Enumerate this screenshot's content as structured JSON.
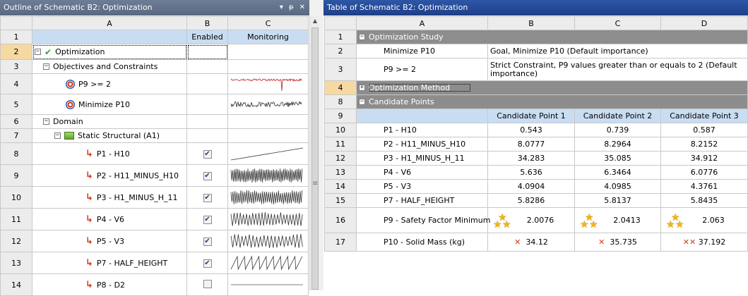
{
  "left_panel": {
    "title": "Outline of Schematic B2: Optimization",
    "title_buttons": [
      "▾",
      "ᵽ",
      "✕"
    ],
    "columns": [
      "A",
      "B",
      "C"
    ],
    "subheaders": [
      "",
      "Enabled",
      "Monitoring"
    ],
    "rows": [
      {
        "num": "1"
      },
      {
        "num": "2",
        "label": "Optimization"
      },
      {
        "num": "3",
        "label": "Objectives and Constraints"
      },
      {
        "num": "4",
        "label": "P9 >= 2"
      },
      {
        "num": "5",
        "label": "Minimize P10"
      },
      {
        "num": "6",
        "label": "Domain"
      },
      {
        "num": "7",
        "label": "Static Structural (A1)"
      },
      {
        "num": "8",
        "label": "P1 - H10",
        "enabled": true
      },
      {
        "num": "9",
        "label": "P2 - H11_MINUS_H10",
        "enabled": true
      },
      {
        "num": "10",
        "label": "P3 - H1_MINUS_H_11",
        "enabled": true
      },
      {
        "num": "11",
        "label": "P4 - V6",
        "enabled": true
      },
      {
        "num": "12",
        "label": "P5 - V3",
        "enabled": true
      },
      {
        "num": "13",
        "label": "P7 - HALF_HEIGHT",
        "enabled": true
      },
      {
        "num": "14",
        "label": "P8 - D2",
        "enabled": false
      }
    ],
    "icons": {
      "expand": "minus-box-icon",
      "optimization": "green-check-icon",
      "objective": "target-icon",
      "system": "static-structural-icon",
      "parameter": "parameter-p-icon"
    }
  },
  "right_panel": {
    "title": "Table of Schematic B2: Optimization",
    "columns": [
      "A",
      "B",
      "C",
      "D"
    ],
    "rows": {
      "r1": {
        "num": "1",
        "label": "Optimization Study"
      },
      "r2": {
        "num": "2",
        "label": "Minimize P10",
        "value": "Goal, Minimize P10 (Default importance)"
      },
      "r3": {
        "num": "3",
        "label": "P9 >= 2",
        "value_line1": "Strict Constraint, P9 values greater than or equals to 2 (Default",
        "value_line2": "importance)"
      },
      "r4": {
        "num": "4",
        "label": "Optimization Method"
      },
      "r8": {
        "num": "8",
        "label": "Candidate Points"
      },
      "r9": {
        "num": "9",
        "headers": [
          "Candidate Point 1",
          "Candidate Point 2",
          "Candidate Point 3"
        ]
      },
      "data": [
        {
          "num": "10",
          "label": "P1 - H10",
          "values": [
            "0.543",
            "0.739",
            "0.587"
          ]
        },
        {
          "num": "11",
          "label": "P2 - H11_MINUS_H10",
          "values": [
            "8.0777",
            "8.2964",
            "8.2152"
          ]
        },
        {
          "num": "12",
          "label": "P3 - H1_MINUS_H_11",
          "values": [
            "34.283",
            "35.085",
            "34.912"
          ]
        },
        {
          "num": "13",
          "label": "P4 - V6",
          "values": [
            "5.636",
            "6.3464",
            "6.0776"
          ]
        },
        {
          "num": "14",
          "label": "P5 - V3",
          "values": [
            "4.0904",
            "4.0985",
            "4.3761"
          ]
        },
        {
          "num": "15",
          "label": "P7 - HALF_HEIGHT",
          "values": [
            "5.8286",
            "5.8137",
            "5.8435"
          ]
        }
      ],
      "r16": {
        "num": "16",
        "label": "P9 - Safety Factor Minimum",
        "values": [
          "2.0076",
          "2.0413",
          "2.063"
        ],
        "rating_icon": "three-stars-icon"
      },
      "r17": {
        "num": "17",
        "label": "P10 - Solid Mass (kg)",
        "values": [
          "34.12",
          "35.735",
          "37.192"
        ],
        "rating_icons": [
          "x-icon",
          "x-icon",
          "double-x-icon"
        ]
      }
    },
    "section_color": "#8d8d8d",
    "header_color": "#c9ddf2"
  }
}
